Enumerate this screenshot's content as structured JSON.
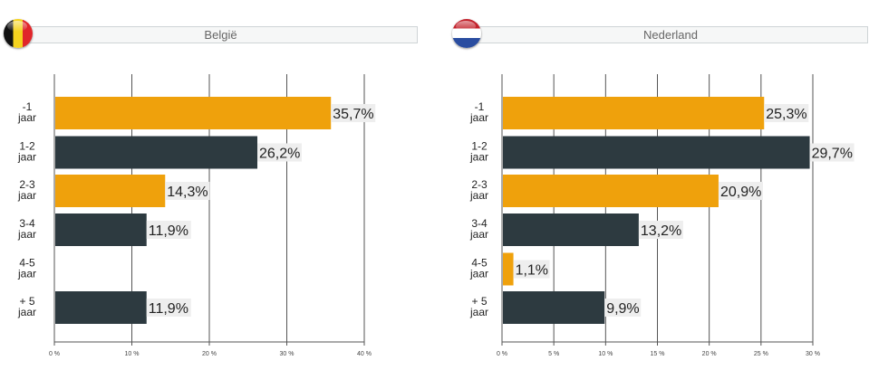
{
  "chart_data": [
    {
      "type": "bar",
      "orientation": "horizontal",
      "title": "België",
      "flag": "belgium-flag-icon",
      "categories": [
        [
          "-1",
          "jaar"
        ],
        [
          "1-2",
          "jaar"
        ],
        [
          "2-3",
          "jaar"
        ],
        [
          "3-4",
          "jaar"
        ],
        [
          "4-5",
          "jaar"
        ],
        [
          "+ 5",
          "jaar"
        ]
      ],
      "values": [
        35.7,
        26.2,
        14.3,
        11.9,
        null,
        11.9
      ],
      "value_labels": [
        "35,7%",
        "26,2%",
        "14,3%",
        "11,9%",
        "",
        "11,9%"
      ],
      "colors": [
        "#efa10c",
        "#2d3a40",
        "#efa10c",
        "#2d3a40",
        "#efa10c",
        "#2d3a40"
      ],
      "xlim": [
        0,
        40
      ],
      "xticks": [
        0,
        10,
        20,
        30,
        40
      ],
      "xtick_labels": [
        "0 %",
        "10 %",
        "20 %",
        "30 %",
        "40 %"
      ],
      "grid": true,
      "xlabel": "",
      "ylabel": ""
    },
    {
      "type": "bar",
      "orientation": "horizontal",
      "title": "Nederland",
      "flag": "netherlands-flag-icon",
      "categories": [
        [
          "-1",
          "jaar"
        ],
        [
          "1-2",
          "jaar"
        ],
        [
          "2-3",
          "jaar"
        ],
        [
          "3-4",
          "jaar"
        ],
        [
          "4-5",
          "jaar"
        ],
        [
          "+ 5",
          "jaar"
        ]
      ],
      "values": [
        25.3,
        29.7,
        20.9,
        13.2,
        1.1,
        9.9
      ],
      "value_labels": [
        "25,3%",
        "29,7%",
        "20,9%",
        "13,2%",
        "1,1%",
        "9,9%"
      ],
      "colors": [
        "#efa10c",
        "#2d3a40",
        "#efa10c",
        "#2d3a40",
        "#efa10c",
        "#2d3a40"
      ],
      "xlim": [
        0,
        30
      ],
      "xticks": [
        0,
        5,
        10,
        15,
        20,
        25,
        30
      ],
      "xtick_labels": [
        "0 %",
        "5 %",
        "10 %",
        "15 %",
        "20 %",
        "25 %",
        "30 %"
      ],
      "grid": true,
      "xlabel": "",
      "ylabel": ""
    }
  ]
}
